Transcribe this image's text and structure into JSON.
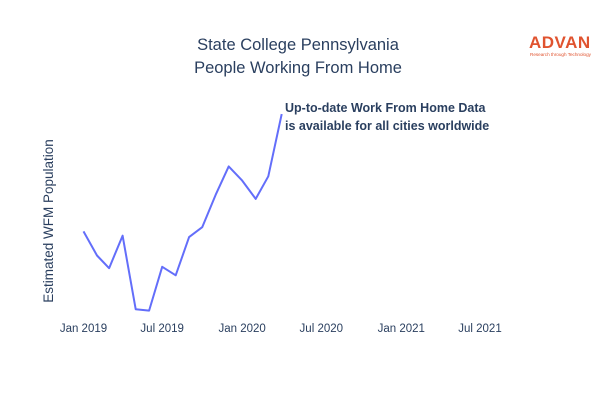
{
  "brand": {
    "logo_text": "ADVAN",
    "tagline": "Research through Technology",
    "color": "#e0532f"
  },
  "chart_data": {
    "type": "line",
    "title": [
      "State College Pennsylvania",
      "People Working From Home"
    ],
    "ylabel": "Estimated WFM Population",
    "xlabel": "",
    "annotation": [
      "Up-to-date Work From Home Data",
      "is available for all cities worldwide"
    ],
    "x_ticks": [
      {
        "label": "Jan 2019",
        "date": "2019-01-01"
      },
      {
        "label": "Jul 2019",
        "date": "2019-07-01"
      },
      {
        "label": "Jan 2020",
        "date": "2020-01-01"
      },
      {
        "label": "Jul 2020",
        "date": "2020-07-01"
      },
      {
        "label": "Jan 2021",
        "date": "2021-01-01"
      },
      {
        "label": "Jul 2021",
        "date": "2021-07-01"
      }
    ],
    "xlim": [
      "2018-12-01",
      "2021-10-01"
    ],
    "y_tick_labels_shown": false,
    "grid": false,
    "legend": "none",
    "line_color": "#636efa",
    "series": [
      {
        "x": [
          "2019-01-01",
          "2019-02-01",
          "2019-03-01",
          "2019-04-01",
          "2019-05-01",
          "2019-06-01",
          "2019-07-01",
          "2019-08-01",
          "2019-09-01",
          "2019-10-01",
          "2019-11-01",
          "2019-12-01",
          "2020-01-01",
          "2020-02-01",
          "2020-03-01",
          "2020-04-01"
        ],
        "values": [
          57,
          40,
          31,
          54,
          2,
          1,
          32,
          26,
          53,
          60,
          83,
          103,
          93,
          80,
          96,
          140
        ]
      }
    ],
    "ylim": [
      0,
      150
    ]
  }
}
